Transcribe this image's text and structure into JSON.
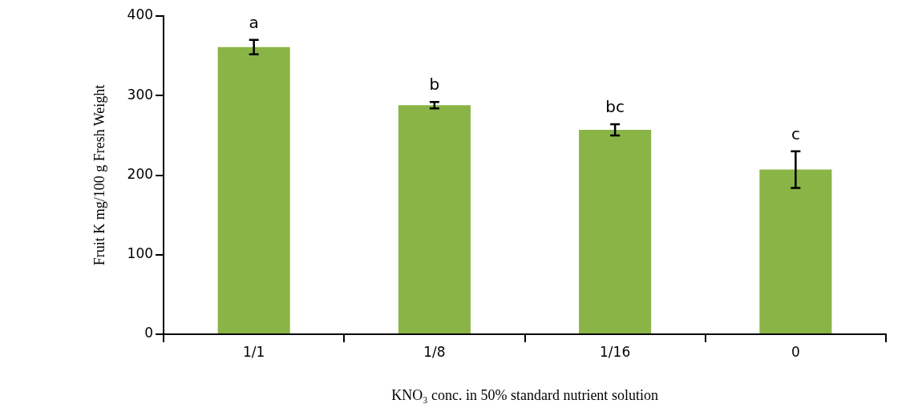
{
  "chart_data": {
    "type": "bar",
    "xlabel": "KNO₃ conc. in 50% standard nutrient solution",
    "ylabel": "Fruit K mg/100 g Fresh Weight",
    "categories": [
      "1/1",
      "1/8",
      "1/16",
      "0"
    ],
    "values": [
      361,
      288,
      257,
      207
    ],
    "errors": [
      9,
      4,
      7,
      23
    ],
    "color": "#8ab446",
    "ylim": [
      0,
      400
    ],
    "yticks": [
      0,
      100,
      200,
      300,
      400
    ],
    "grid": false,
    "legend": false,
    "annotations": [
      "a",
      "b",
      "bc",
      "c"
    ]
  }
}
